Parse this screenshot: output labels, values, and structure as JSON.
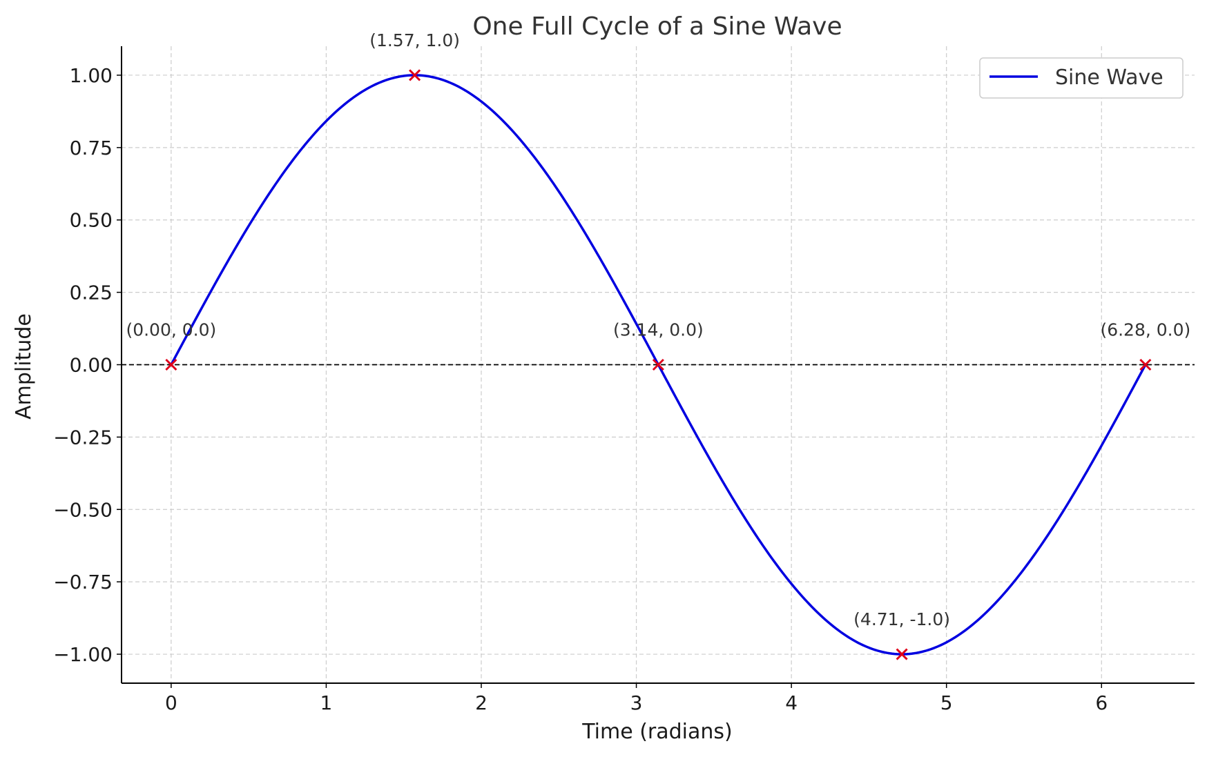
{
  "chart_data": {
    "type": "line",
    "title": "One Full Cycle of a Sine Wave",
    "xlabel": "Time (radians)",
    "ylabel": "Amplitude",
    "xlim": [
      -0.32,
      6.6
    ],
    "ylim": [
      -1.1,
      1.1
    ],
    "xticks": [
      0,
      1,
      2,
      3,
      4,
      5,
      6
    ],
    "xtick_labels": [
      "0",
      "1",
      "2",
      "3",
      "4",
      "5",
      "6"
    ],
    "yticks": [
      1.0,
      0.75,
      0.5,
      0.25,
      0.0,
      -0.25,
      -0.5,
      -0.75,
      -1.0
    ],
    "ytick_labels": [
      "1.00",
      "0.75",
      "0.50",
      "0.25",
      "0.00",
      "−0.25",
      "−0.50",
      "−0.75",
      "−1.00"
    ],
    "grid": true,
    "reference_line": {
      "y": 0,
      "style": "dashed",
      "color": "#000000"
    },
    "series": [
      {
        "name": "Sine Wave",
        "function": "sin(x)",
        "x_start": 0,
        "x_end": 6.2832,
        "samples": 400,
        "color": "#0000e0"
      }
    ],
    "markers": [
      {
        "x": 0.0,
        "y": 0.0,
        "label": "(0.00, 0.0)"
      },
      {
        "x": 1.5708,
        "y": 1.0,
        "label": "(1.57, 1.0)"
      },
      {
        "x": 3.1416,
        "y": 0.0,
        "label": "(3.14, 0.0)"
      },
      {
        "x": 4.7124,
        "y": -1.0,
        "label": "(4.71, -1.0)"
      },
      {
        "x": 6.2832,
        "y": 0.0,
        "label": "(6.28, 0.0)"
      }
    ],
    "marker_color": "#e0001a",
    "legend": {
      "position": "top-right",
      "entries": [
        "Sine Wave"
      ]
    }
  }
}
